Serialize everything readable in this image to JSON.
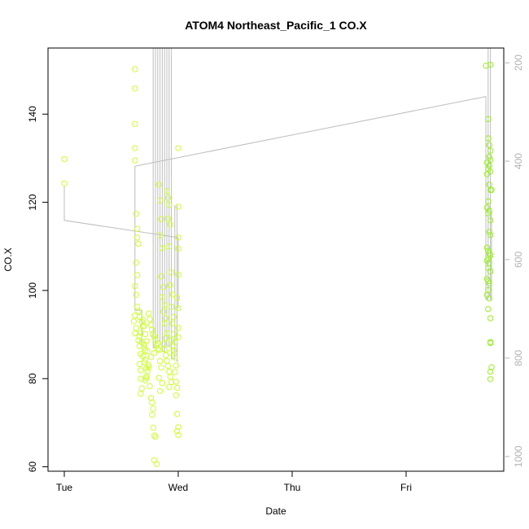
{
  "chart_data": {
    "type": "scatter",
    "title": "ATOM4 Northeast_Pacific_1 CO.X",
    "xlabel": "Date",
    "ylabel": "CO.X",
    "x_ticks": [
      "Tue",
      "Wed",
      "Thu",
      "Fri"
    ],
    "x_range_days": [
      0,
      3.85
    ],
    "ylim": [
      59,
      155
    ],
    "y_ticks": [
      60,
      80,
      100,
      120,
      140
    ],
    "right_axis": {
      "ticks": [
        200,
        400,
        600,
        800,
        1000
      ],
      "lim": [
        170,
        1030
      ],
      "reversed": true,
      "color": "#b3b3b3"
    },
    "colors": {
      "point_wed": "#ccff33",
      "point_fri": "#99ee22",
      "profile": "#bdbdbd",
      "axis": "#000000"
    },
    "series": [
      {
        "points": [
          [
            0.0,
            129.8
          ],
          [
            0.0,
            124.3
          ],
          [
            0.62,
            150.2
          ],
          [
            0.62,
            145.8
          ],
          [
            0.62,
            137.8
          ],
          [
            0.62,
            132.3
          ],
          [
            0.62,
            129.5
          ],
          [
            0.63,
            117.4
          ],
          [
            0.64,
            114.0
          ],
          [
            0.64,
            112.0
          ],
          [
            0.65,
            110.6
          ],
          [
            0.63,
            106.3
          ],
          [
            0.64,
            103.5
          ],
          [
            0.62,
            101.0
          ],
          [
            0.63,
            99.0
          ],
          [
            0.64,
            96.3
          ],
          [
            0.62,
            94.3
          ],
          [
            0.61,
            93.0
          ],
          [
            0.63,
            91.5
          ],
          [
            0.62,
            90.3
          ],
          [
            0.65,
            88.7
          ],
          [
            0.66,
            87.4
          ],
          [
            0.67,
            85.6
          ],
          [
            0.66,
            83.3
          ],
          [
            0.67,
            81.9
          ],
          [
            0.67,
            80.0
          ],
          [
            0.68,
            77.8
          ],
          [
            0.67,
            76.6
          ],
          [
            0.69,
            93.4
          ],
          [
            0.7,
            92.0
          ],
          [
            0.71,
            90.1
          ],
          [
            0.72,
            88.5
          ],
          [
            0.7,
            87.0
          ],
          [
            0.73,
            86.2
          ],
          [
            0.71,
            84.3
          ],
          [
            0.74,
            82.6
          ],
          [
            0.72,
            80.1
          ],
          [
            0.75,
            78.3
          ],
          [
            0.76,
            75.6
          ],
          [
            0.77,
            74.6
          ],
          [
            0.78,
            73.2
          ],
          [
            0.77,
            71.8
          ],
          [
            0.78,
            68.9
          ],
          [
            0.79,
            67.1
          ],
          [
            0.8,
            66.8
          ],
          [
            0.79,
            61.5
          ],
          [
            0.81,
            60.6
          ],
          [
            0.82,
            88.0
          ],
          [
            0.83,
            86.5
          ],
          [
            0.84,
            84.0
          ],
          [
            0.85,
            82.5
          ],
          [
            0.83,
            80.2
          ],
          [
            0.86,
            79.0
          ],
          [
            0.84,
            77.2
          ],
          [
            0.83,
            124.0
          ],
          [
            0.84,
            120.4
          ],
          [
            0.85,
            116.2
          ],
          [
            0.84,
            112.5
          ],
          [
            0.86,
            109.6
          ],
          [
            0.85,
            103.2
          ],
          [
            0.87,
            100.8
          ],
          [
            0.86,
            98.5
          ],
          [
            0.88,
            96.7
          ],
          [
            0.87,
            95.2
          ],
          [
            0.89,
            93.7
          ],
          [
            0.88,
            92.5
          ],
          [
            0.9,
            90.3
          ],
          [
            0.89,
            89.2
          ],
          [
            0.9,
            122.5
          ],
          [
            0.91,
            121.0
          ],
          [
            0.92,
            119.4
          ],
          [
            0.91,
            116.3
          ],
          [
            0.93,
            115.0
          ],
          [
            0.92,
            110.0
          ],
          [
            0.94,
            104.1
          ],
          [
            0.93,
            101.2
          ],
          [
            0.95,
            99.1
          ],
          [
            0.94,
            96.3
          ],
          [
            0.96,
            94.0
          ],
          [
            0.95,
            92.5
          ],
          [
            0.96,
            90.1
          ],
          [
            0.97,
            88.3
          ],
          [
            0.96,
            86.4
          ],
          [
            0.97,
            84.8
          ],
          [
            0.98,
            83.0
          ],
          [
            0.97,
            81.5
          ],
          [
            0.98,
            79.3
          ],
          [
            0.99,
            77.9
          ],
          [
            0.98,
            76.2
          ],
          [
            0.99,
            72.0
          ],
          [
            1.0,
            69.0
          ],
          [
            0.99,
            68.1
          ],
          [
            1.0,
            67.2
          ],
          [
            1.0,
            132.3
          ],
          [
            1.0,
            119.0
          ],
          [
            1.0,
            112.0
          ],
          [
            1.0,
            109.5
          ],
          [
            1.0,
            103.6
          ],
          [
            0.99,
            98.3
          ],
          [
            1.0,
            96.0
          ],
          [
            1.0,
            91.5
          ],
          [
            1.0,
            89.4
          ],
          [
            0.74,
            94.8
          ],
          [
            0.75,
            93.5
          ],
          [
            0.76,
            92.2
          ],
          [
            0.77,
            91.1
          ],
          [
            0.78,
            90.0
          ],
          [
            0.79,
            89.5
          ],
          [
            0.8,
            88.8
          ],
          [
            0.81,
            87.5
          ],
          [
            0.82,
            86.7
          ],
          [
            0.79,
            85.8
          ],
          [
            0.76,
            84.9
          ],
          [
            0.74,
            83.1
          ],
          [
            0.73,
            81.7
          ],
          [
            0.72,
            80.5
          ],
          [
            0.71,
            79.6
          ],
          [
            0.65,
            95.3
          ],
          [
            0.66,
            94.0
          ],
          [
            0.68,
            92.9
          ],
          [
            0.69,
            91.8
          ],
          [
            0.67,
            90.4
          ],
          [
            0.66,
            89.6
          ],
          [
            0.68,
            88.3
          ],
          [
            0.7,
            87.7
          ],
          [
            0.71,
            86.4
          ],
          [
            0.69,
            85.1
          ],
          [
            0.7,
            83.7
          ],
          [
            0.72,
            82.3
          ],
          [
            0.87,
            87.9
          ],
          [
            0.88,
            86.6
          ],
          [
            0.89,
            85.3
          ],
          [
            0.9,
            84.0
          ],
          [
            0.91,
            82.9
          ],
          [
            0.92,
            81.6
          ],
          [
            0.93,
            80.4
          ],
          [
            0.94,
            79.2
          ],
          [
            0.92,
            78.1
          ],
          [
            0.94,
            88.7
          ],
          [
            0.95,
            87.3
          ],
          [
            0.93,
            85.9
          ]
        ]
      },
      {
        "points": [
          [
            3.7,
            151.0
          ],
          [
            3.74,
            151.2
          ],
          [
            3.72,
            138.9
          ],
          [
            3.72,
            134.5
          ],
          [
            3.73,
            133.0
          ],
          [
            3.74,
            131.7
          ],
          [
            3.73,
            130.3
          ],
          [
            3.74,
            129.6
          ],
          [
            3.71,
            129.0
          ],
          [
            3.73,
            128.3
          ],
          [
            3.72,
            127.6
          ],
          [
            3.74,
            127.0
          ],
          [
            3.71,
            126.4
          ],
          [
            3.73,
            124.0
          ],
          [
            3.74,
            122.8
          ],
          [
            3.75,
            122.8
          ],
          [
            3.72,
            120.2
          ],
          [
            3.71,
            118.8
          ],
          [
            3.73,
            118.1
          ],
          [
            3.72,
            117.5
          ],
          [
            3.74,
            115.9
          ],
          [
            3.73,
            113.3
          ],
          [
            3.74,
            112.6
          ],
          [
            3.71,
            109.7
          ],
          [
            3.72,
            109.0
          ],
          [
            3.73,
            108.4
          ],
          [
            3.74,
            108.0
          ],
          [
            3.72,
            107.3
          ],
          [
            3.71,
            106.8
          ],
          [
            3.73,
            106.2
          ],
          [
            3.72,
            105.1
          ],
          [
            3.74,
            104.3
          ],
          [
            3.71,
            102.6
          ],
          [
            3.72,
            102.1
          ],
          [
            3.73,
            101.6
          ],
          [
            3.72,
            100.1
          ],
          [
            3.71,
            99.0
          ],
          [
            3.73,
            98.2
          ],
          [
            3.72,
            95.8
          ],
          [
            3.74,
            93.7
          ],
          [
            3.74,
            88.3
          ],
          [
            3.74,
            88.1
          ],
          [
            3.75,
            82.6
          ],
          [
            3.74,
            81.6
          ],
          [
            3.74,
            79.9
          ]
        ]
      }
    ],
    "profile_lines": [
      [
        [
          0.0,
          123.8
        ],
        [
          0.0,
          115.9
        ],
        [
          1.0,
          112.0
        ],
        [
          1.0,
          96.0
        ]
      ],
      [
        [
          0.62,
          128.2
        ],
        [
          0.62,
          95.5
        ],
        [
          0.68,
          95.5
        ],
        [
          0.68,
          87.3
        ]
      ],
      [
        [
          0.78,
          155.0
        ],
        [
          0.78,
          87.0
        ],
        [
          0.8,
          87.0
        ],
        [
          0.8,
          155.0
        ]
      ],
      [
        [
          0.82,
          155.0
        ],
        [
          0.82,
          88.5
        ],
        [
          0.84,
          88.5
        ],
        [
          0.84,
          155.0
        ]
      ],
      [
        [
          0.86,
          155.0
        ],
        [
          0.86,
          86.2
        ],
        [
          0.88,
          86.2
        ],
        [
          0.88,
          155.0
        ]
      ],
      [
        [
          0.9,
          155.0
        ],
        [
          0.9,
          87.4
        ],
        [
          0.92,
          87.4
        ],
        [
          0.92,
          155.0
        ]
      ],
      [
        [
          0.94,
          155.0
        ],
        [
          0.94,
          84.5
        ],
        [
          0.97,
          84.5
        ],
        [
          0.97,
          119.3
        ]
      ],
      [
        [
          0.99,
          119.3
        ],
        [
          0.99,
          84.0
        ],
        [
          1.0,
          84.0
        ]
      ],
      [
        [
          0.62,
          128.2
        ],
        [
          3.7,
          144.0
        ],
        [
          3.7,
          98.0
        ],
        [
          3.72,
          98.0
        ],
        [
          3.72,
          155.0
        ]
      ],
      [
        [
          3.74,
          155.0
        ],
        [
          3.74,
          98.0
        ],
        [
          3.75,
          98.0
        ],
        [
          3.75,
          118.0
        ]
      ]
    ]
  }
}
